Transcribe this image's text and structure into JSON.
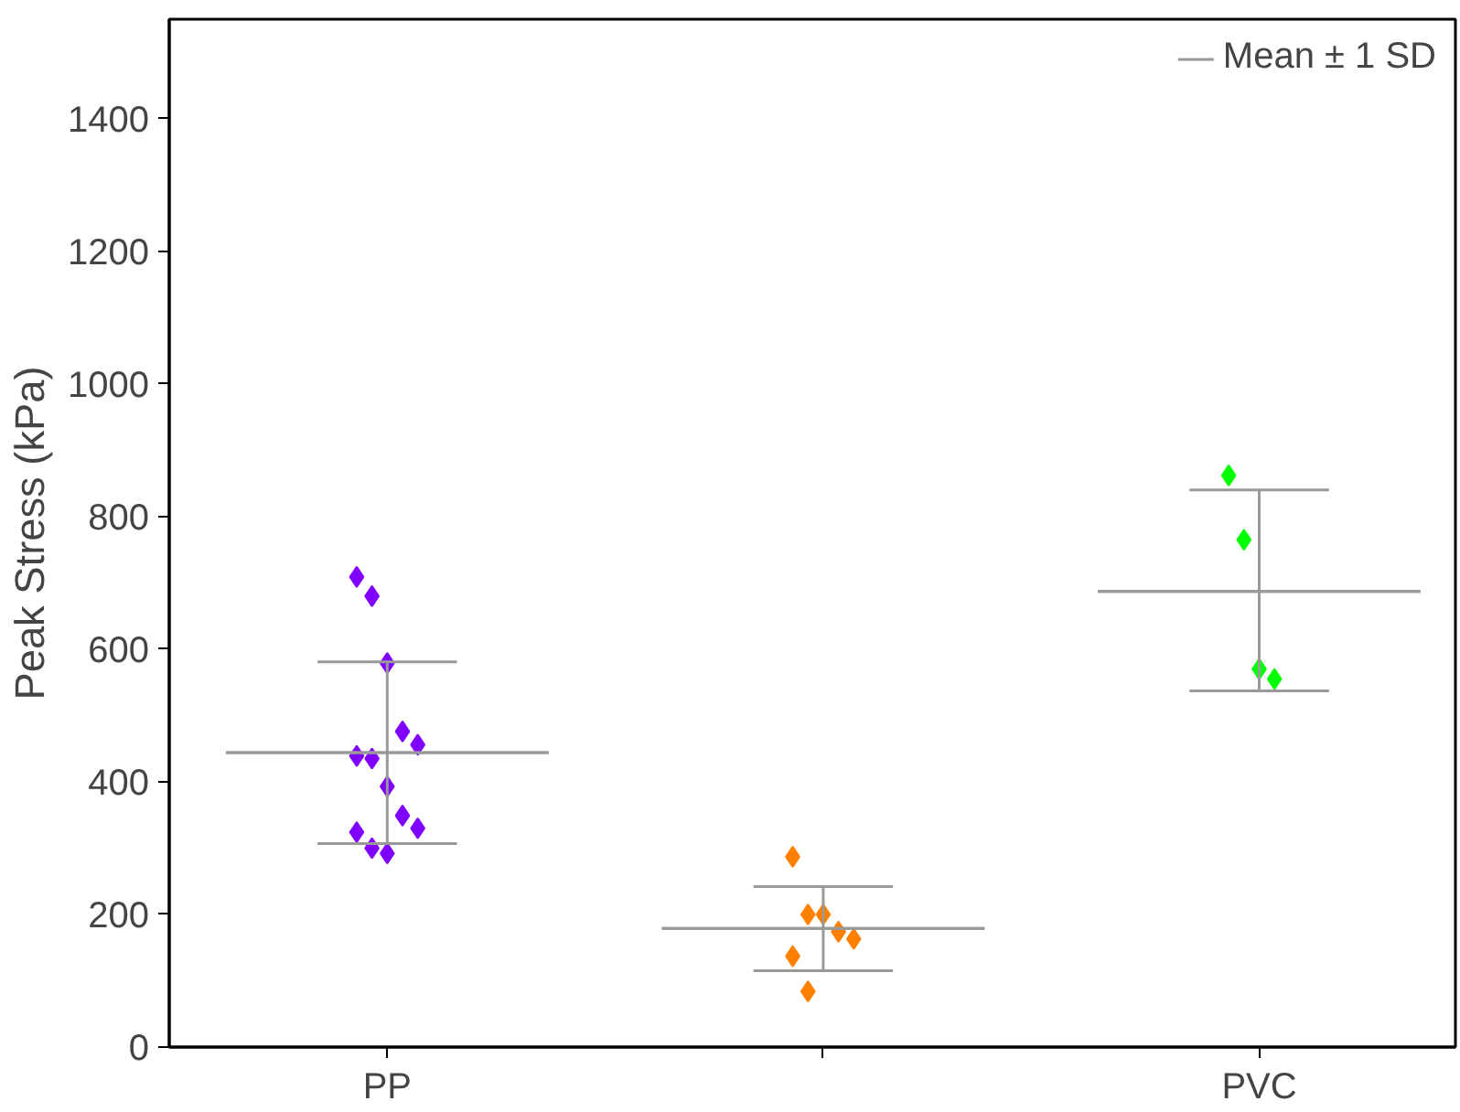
{
  "chart_data": {
    "type": "scatter",
    "ylabel": "Peak Stress (kPa)",
    "categories": [
      "PP",
      null,
      "PVC"
    ],
    "ylim": [
      0,
      1550
    ],
    "yticks": [
      0,
      200,
      400,
      600,
      800,
      1000,
      1200,
      1400
    ],
    "grid": false,
    "legend": "top right",
    "marker": "diamond",
    "series": [
      {
        "colors": [
          "#8000ff",
          "#ff8000",
          "#00ff00"
        ],
        "values": [
          709,
          287,
          862
        ]
      },
      {
        "colors": [
          "#8000ff",
          "#ff8000",
          "#00ff00"
        ],
        "values": [
          680,
          200,
          765
        ]
      },
      {
        "colors": [
          "#8000ff",
          "#ff8000",
          "#00ff00"
        ],
        "values": [
          579,
          200,
          570
        ]
      },
      {
        "colors": [
          "#8000ff",
          "#ff8000",
          "#00ff00"
        ],
        "values": [
          476,
          174,
          555
        ]
      },
      {
        "colors": [
          "#8000ff",
          "#ff8000",
          null
        ],
        "values": [
          456,
          163,
          null
        ]
      },
      {
        "colors": [
          "#8000ff",
          "#ff8000",
          null
        ],
        "values": [
          439,
          137,
          null
        ]
      },
      {
        "colors": [
          "#8000ff",
          "#ff8000",
          null
        ],
        "values": [
          435,
          84,
          null
        ]
      },
      {
        "colors": [
          "#8000ff",
          null,
          null
        ],
        "values": [
          393,
          null,
          null
        ]
      },
      {
        "colors": [
          "#8000ff",
          null,
          null
        ],
        "values": [
          349,
          null,
          null
        ]
      },
      {
        "colors": [
          "#8000ff",
          null,
          null
        ],
        "values": [
          330,
          null,
          null
        ]
      },
      {
        "colors": [
          "#8000ff",
          null,
          null
        ],
        "values": [
          324,
          null,
          null
        ]
      },
      {
        "colors": [
          "#8000ff",
          null,
          null
        ],
        "values": [
          300,
          null,
          null
        ]
      },
      {
        "colors": [
          "#8000ff",
          null,
          null
        ],
        "values": [
          292,
          null,
          null
        ]
      },
      {
        "name": "Mean ± 1 SD",
        "type": "box",
        "color": "#999999",
        "boxes": [
          {
            "low": 307,
            "q1": 444,
            "median": 444,
            "q3": 444,
            "high": 581
          },
          {
            "low": 115,
            "q1": 179,
            "median": 179,
            "q3": 179,
            "high": 242
          },
          {
            "low": 537,
            "q1": 687,
            "median": 687,
            "q3": 687,
            "high": 840
          }
        ]
      }
    ]
  }
}
